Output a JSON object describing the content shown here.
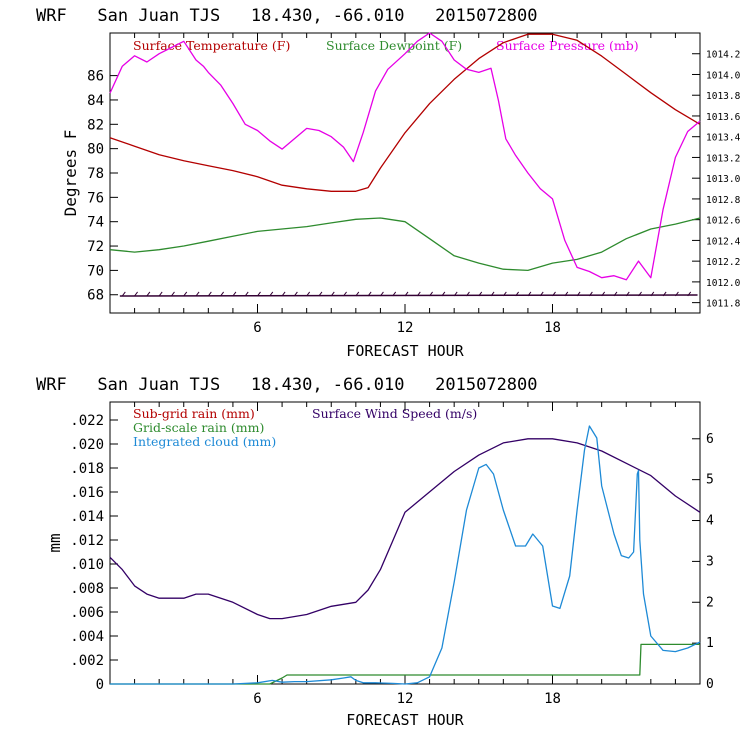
{
  "colors": {
    "temperature": "#b30000",
    "dewpoint": "#2e8b2e",
    "pressure": "#e600e6",
    "wind_barbs": "#330033",
    "subgrid_rain": "#b30000",
    "gridscale_rain": "#2e8b2e",
    "cloud": "#1e8ad6",
    "wind_speed": "#330066",
    "frame": "#000000"
  },
  "chart_data": [
    {
      "type": "line",
      "title": "WRF   San Juan TJS   18.430, -66.010   2015072800",
      "xlabel": "FORECAST HOUR",
      "ylabel": "Degrees F",
      "xlim": [
        0,
        24
      ],
      "ylim": [
        66.5,
        89.5
      ],
      "y2lim": [
        1011.7,
        1014.4
      ],
      "xticks": [
        6,
        12,
        18
      ],
      "yticks": [
        68,
        70,
        72,
        74,
        76,
        78,
        80,
        82,
        84,
        86
      ],
      "y2ticks": [
        1011.8,
        1012.0,
        1012.2,
        1012.4,
        1012.6,
        1012.8,
        1013.0,
        1013.2,
        1013.4,
        1013.6,
        1013.8,
        1014.0,
        1014.2
      ],
      "legend": [
        {
          "label": "Surface Temperature (F)",
          "color": "#b30000"
        },
        {
          "label": "Surface Dewpoint (F)",
          "color": "#2e8b2e"
        },
        {
          "label": "Surface Pressure (mb)",
          "color": "#e600e6"
        }
      ],
      "series": [
        {
          "name": "Surface Temperature (F)",
          "axis": "left",
          "color": "#b30000",
          "x": [
            0,
            1,
            2,
            3,
            4,
            5,
            6,
            7,
            8,
            9,
            10,
            10.5,
            11,
            12,
            13,
            14,
            15,
            16,
            17,
            18,
            19,
            20,
            21,
            22,
            23,
            24
          ],
          "values": [
            80.9,
            80.2,
            79.5,
            79.0,
            78.6,
            78.2,
            77.7,
            77.0,
            76.7,
            76.5,
            76.5,
            76.8,
            78.4,
            81.3,
            83.7,
            85.7,
            87.4,
            88.7,
            89.4,
            89.4,
            88.9,
            87.6,
            86.1,
            84.6,
            83.2,
            82.0
          ]
        },
        {
          "name": "Surface Dewpoint (F)",
          "axis": "left",
          "color": "#2e8b2e",
          "x": [
            0,
            1,
            2,
            3,
            4,
            5,
            6,
            7,
            8,
            9,
            10,
            11,
            12,
            13,
            14,
            15,
            16,
            17,
            18,
            19,
            20,
            21,
            22,
            23,
            24
          ],
          "values": [
            71.7,
            71.5,
            71.7,
            72.0,
            72.4,
            72.8,
            73.2,
            73.4,
            73.6,
            73.9,
            74.2,
            74.3,
            74.0,
            72.6,
            71.2,
            70.6,
            70.1,
            70.0,
            70.6,
            70.9,
            71.5,
            72.6,
            73.4,
            73.8,
            74.3
          ]
        },
        {
          "name": "Surface Pressure (mb)",
          "axis": "right",
          "color": "#e600e6",
          "x": [
            0,
            0.5,
            1,
            1.5,
            2,
            2.5,
            3,
            3.5,
            3.8,
            4,
            4.5,
            5,
            5.5,
            6,
            6.5,
            7,
            7.5,
            8,
            8.5,
            9,
            9.5,
            9.9,
            10.3,
            10.8,
            11.3,
            12,
            12.5,
            13,
            13.5,
            14,
            14.5,
            15,
            15.5,
            15.8,
            16.1,
            16.5,
            17,
            17.5,
            18,
            18.5,
            19,
            19.5,
            20,
            20.5,
            21,
            21.5,
            22,
            22.5,
            23,
            23.5,
            24
          ],
          "values": [
            1013.82,
            1014.08,
            1014.18,
            1014.12,
            1014.2,
            1014.26,
            1014.32,
            1014.14,
            1014.08,
            1014.02,
            1013.9,
            1013.72,
            1013.52,
            1013.46,
            1013.36,
            1013.28,
            1013.38,
            1013.48,
            1013.46,
            1013.4,
            1013.3,
            1013.16,
            1013.44,
            1013.84,
            1014.05,
            1014.2,
            1014.32,
            1014.4,
            1014.32,
            1014.14,
            1014.05,
            1014.02,
            1014.06,
            1013.75,
            1013.38,
            1013.22,
            1013.05,
            1012.9,
            1012.8,
            1012.4,
            1012.14,
            1012.1,
            1012.04,
            1012.06,
            1012.02,
            1012.2,
            1012.04,
            1012.7,
            1013.2,
            1013.45,
            1013.55
          ]
        }
      ],
      "wind_barbs_level": 67.9
    },
    {
      "type": "line",
      "title": "WRF   San Juan TJS   18.430, -66.010   2015072800",
      "xlabel": "FORECAST HOUR",
      "ylabel": "mm",
      "xlim": [
        0,
        24
      ],
      "ylim": [
        0,
        0.0235
      ],
      "y2lim": [
        0,
        6.9
      ],
      "xticks": [
        6,
        12,
        18
      ],
      "yticks": [
        0,
        0.002,
        0.004,
        0.006,
        0.008,
        0.01,
        0.012,
        0.014,
        0.016,
        0.018,
        0.02,
        0.022
      ],
      "ytick_labels": [
        "0",
        ".002",
        ".004",
        ".006",
        ".008",
        ".010",
        ".012",
        ".014",
        ".016",
        ".018",
        ".020",
        ".022"
      ],
      "y2ticks": [
        0,
        1,
        2,
        3,
        4,
        5,
        6
      ],
      "legend": [
        {
          "label": "Sub-grid rain (mm)",
          "color": "#b30000"
        },
        {
          "label": "Surface Wind Speed (m/s)",
          "color": "#330066"
        },
        {
          "label": "Grid-scale rain (mm)",
          "color": "#2e8b2e"
        },
        {
          "label": "Integrated cloud (mm)",
          "color": "#1e8ad6"
        }
      ],
      "series": [
        {
          "name": "Surface Wind Speed (m/s)",
          "axis": "right",
          "color": "#330066",
          "x": [
            0,
            0.5,
            1,
            1.5,
            2,
            3,
            3.5,
            4,
            5,
            6,
            6.5,
            7,
            8,
            9,
            10,
            10.5,
            11,
            11.5,
            12,
            13,
            14,
            15,
            16,
            17,
            18,
            19,
            20,
            21,
            22,
            23,
            24
          ],
          "values": [
            3.1,
            2.8,
            2.4,
            2.2,
            2.1,
            2.1,
            2.2,
            2.2,
            2.0,
            1.7,
            1.6,
            1.6,
            1.7,
            1.9,
            2.0,
            2.3,
            2.8,
            3.5,
            4.2,
            4.7,
            5.2,
            5.6,
            5.9,
            6.0,
            6.0,
            5.9,
            5.7,
            5.4,
            5.1,
            4.6,
            4.2
          ]
        },
        {
          "name": "Grid-scale rain (mm)",
          "axis": "left",
          "color": "#2e8b2e",
          "x": [
            0,
            6.5,
            7,
            7.2,
            21.55,
            21.6,
            24
          ],
          "values": [
            0,
            0,
            0.0005,
            0.00075,
            0.00075,
            0.0033,
            0.0033
          ]
        },
        {
          "name": "Integrated cloud (mm)",
          "axis": "left",
          "color": "#1e8ad6",
          "x": [
            0,
            5,
            6,
            6.6,
            7,
            7.5,
            8,
            9,
            9.5,
            9.8,
            10,
            10.3,
            10.8,
            11.5,
            12,
            12.5,
            13,
            13.5,
            14,
            14.5,
            15,
            15.3,
            15.6,
            16,
            16.5,
            16.9,
            17.2,
            17.6,
            18,
            18.3,
            18.7,
            19,
            19.3,
            19.5,
            19.8,
            20,
            20.5,
            20.8,
            21.1,
            21.3,
            21.45,
            21.5,
            21.55,
            21.7,
            22,
            22.5,
            23,
            23.5,
            24
          ],
          "values": [
            0,
            0,
            0.0001,
            0.0003,
            0.00015,
            0.0002,
            0.0002,
            0.00035,
            0.0005,
            0.0006,
            0.0003,
            0.0001,
            0.0001,
            5e-05,
            0,
            0.0001,
            0.0006,
            0.003,
            0.0085,
            0.0145,
            0.018,
            0.0183,
            0.0175,
            0.0145,
            0.0115,
            0.0115,
            0.0125,
            0.0115,
            0.0065,
            0.0063,
            0.009,
            0.0145,
            0.0195,
            0.0215,
            0.0205,
            0.0165,
            0.0125,
            0.0107,
            0.0105,
            0.011,
            0.0175,
            0.0178,
            0.012,
            0.0075,
            0.004,
            0.0028,
            0.0027,
            0.003,
            0.0035
          ]
        }
      ]
    }
  ]
}
